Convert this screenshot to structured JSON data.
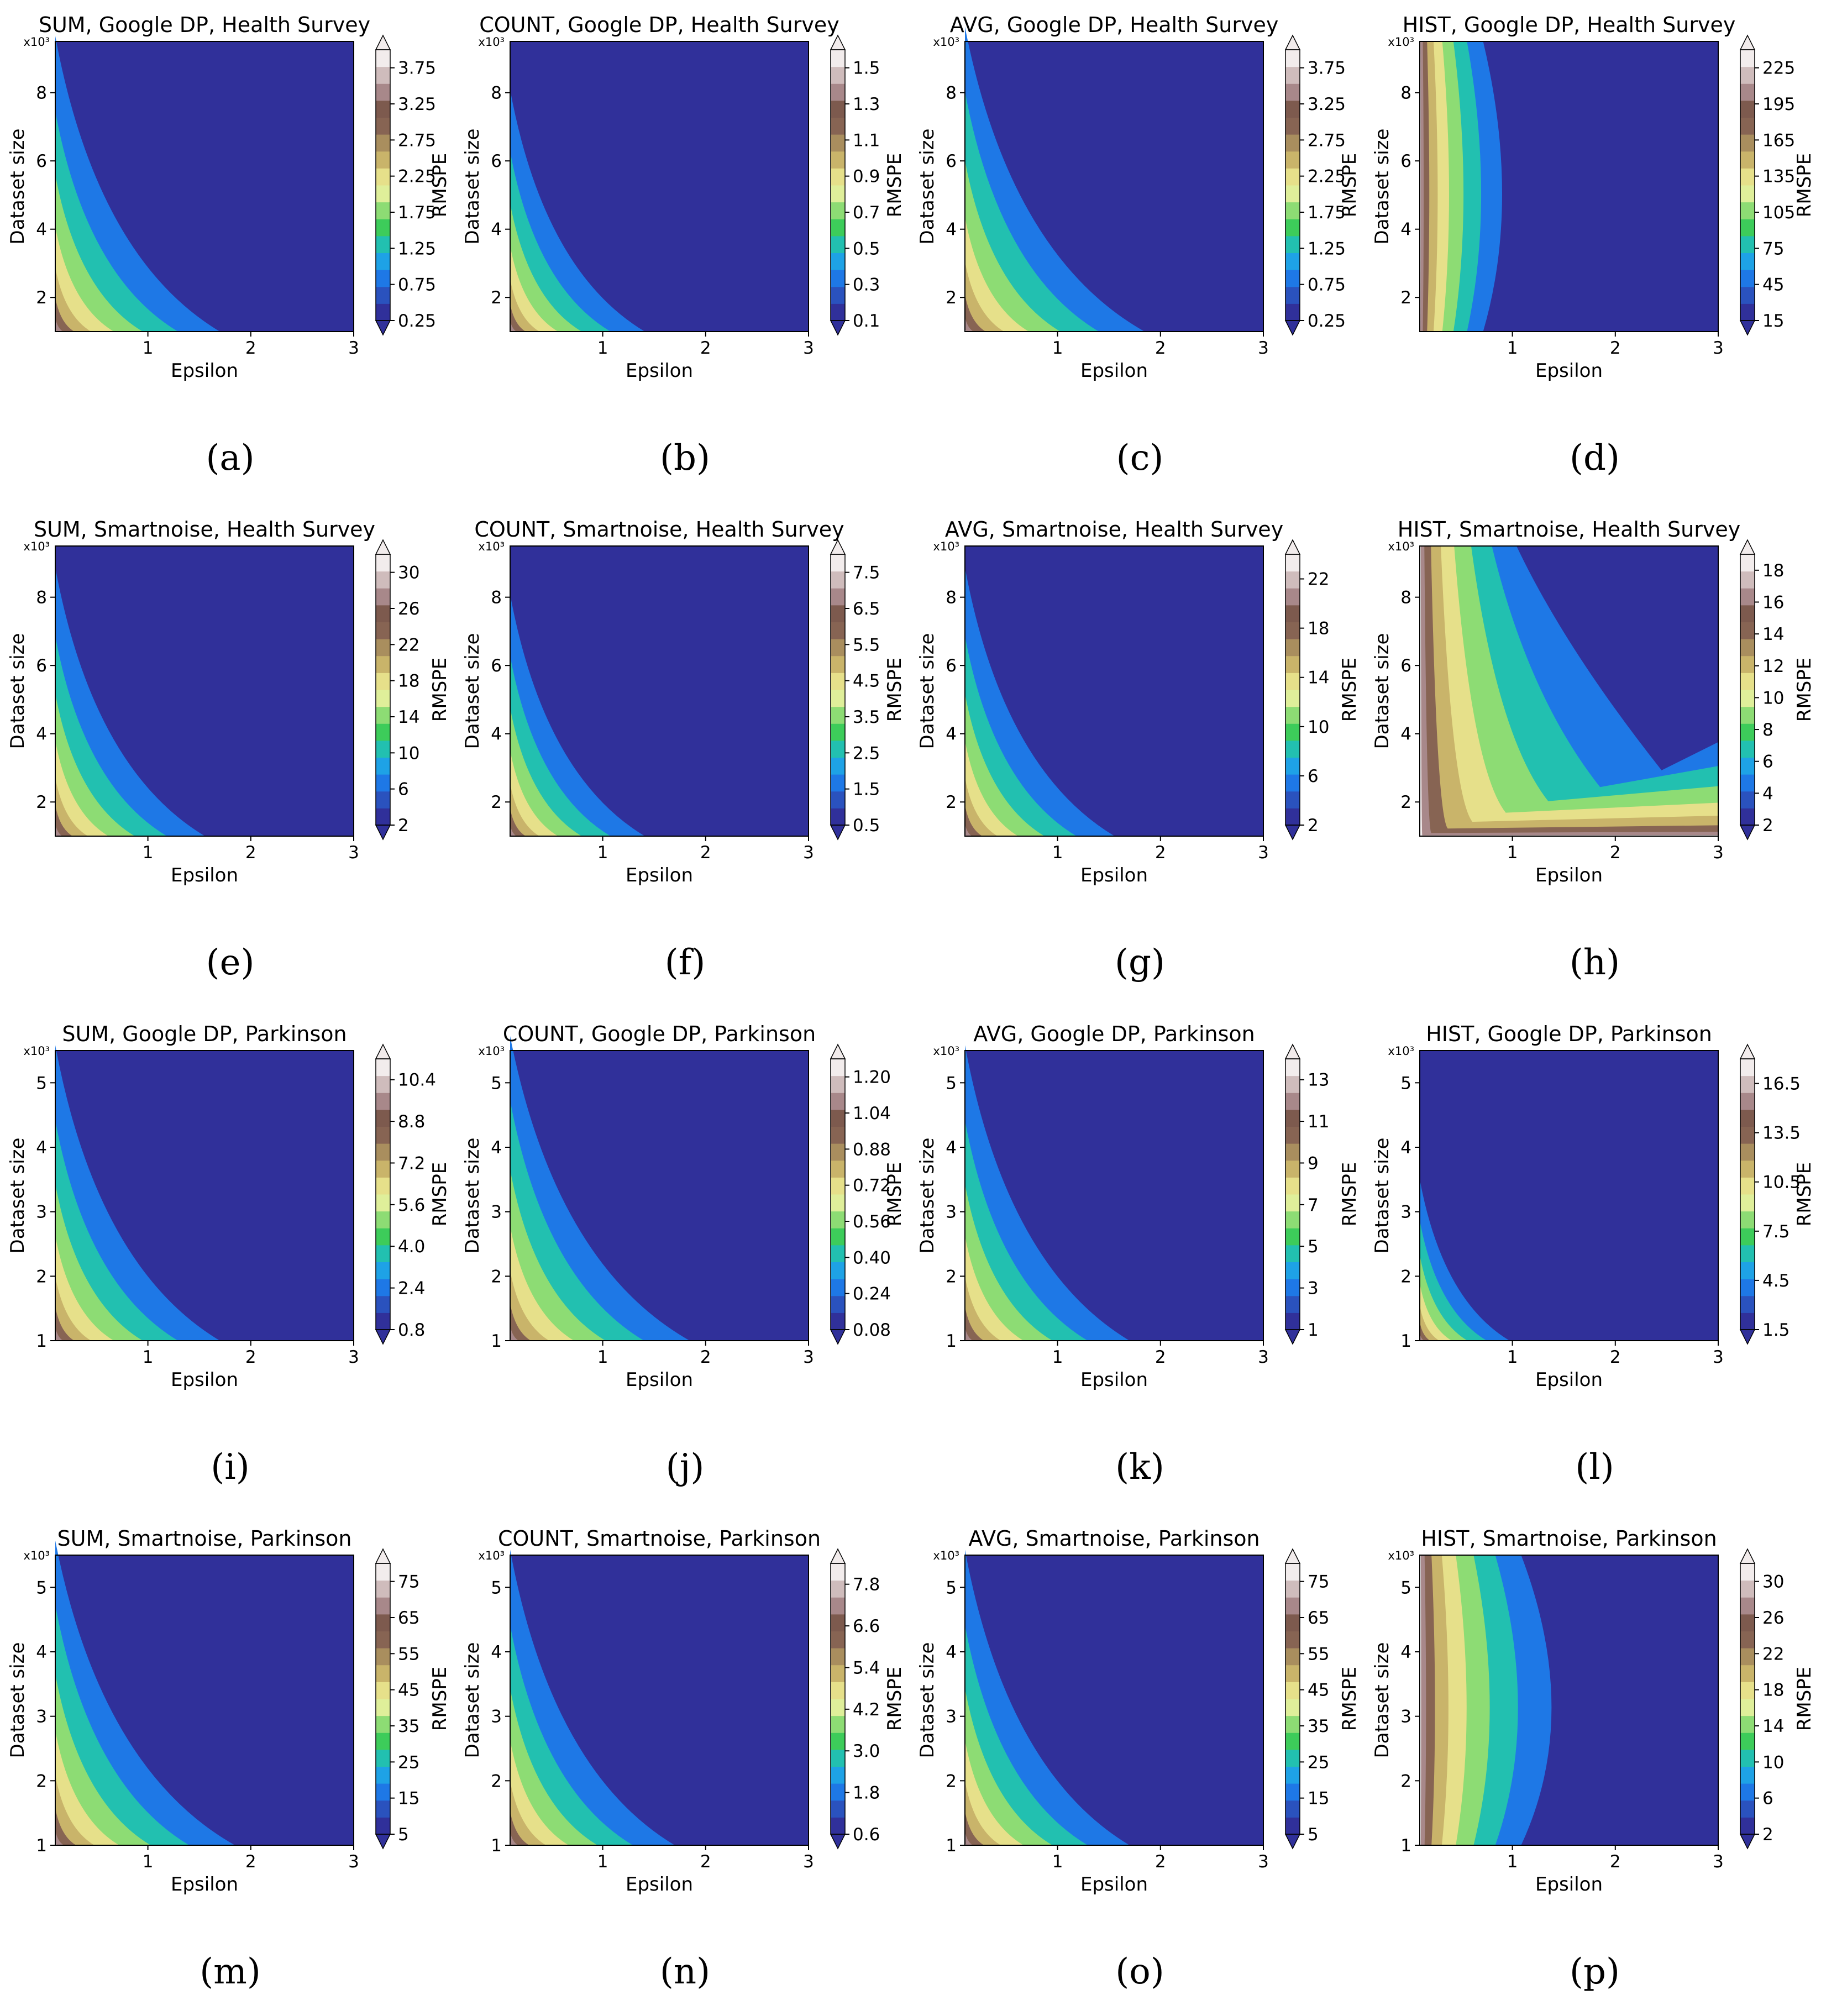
{
  "figure": {
    "axis_exponent_label": "x10³",
    "xlabel": "Epsilon",
    "ylabel": "Dataset size",
    "colorbar_label": "RMSPE",
    "palette": [
      "#30309a",
      "#2a52be",
      "#1e78e6",
      "#1ea2e6",
      "#22c0b0",
      "#3dcc5a",
      "#8ddc74",
      "#dfef9a",
      "#e6e08a",
      "#c9b46a",
      "#a98e5e",
      "#876453",
      "#7d5a4e",
      "#a8888a",
      "#cfbcbc",
      "#f2ecec"
    ]
  },
  "panels": [
    {
      "id": "a",
      "label": "(a)",
      "title": "SUM, Google DP, Health Survey",
      "chart_data": {
        "type": "contourf",
        "xlabel": "Epsilon",
        "ylabel": "Dataset size",
        "x_ticks": [
          "1",
          "2",
          "3"
        ],
        "y_ticks": [
          "2",
          "4",
          "6",
          "8"
        ],
        "xlim": [
          0.1,
          3
        ],
        "ylim": [
          1,
          9.5
        ],
        "colorbar_label": "RMSPE",
        "colorbar_ticks": [
          "0.25",
          "0.75",
          "1.25",
          "1.75",
          "2.25",
          "2.75",
          "3.25",
          "3.75"
        ],
        "colorbar_range": [
          0.25,
          4
        ],
        "pattern": "corner",
        "reach": 0.55
      }
    },
    {
      "id": "b",
      "label": "(b)",
      "title": "COUNT, Google DP, Health Survey",
      "chart_data": {
        "type": "contourf",
        "xlabel": "Epsilon",
        "ylabel": "Dataset size",
        "x_ticks": [
          "1",
          "2",
          "3"
        ],
        "y_ticks": [
          "2",
          "4",
          "6",
          "8"
        ],
        "xlim": [
          0.1,
          3
        ],
        "ylim": [
          1,
          9.5
        ],
        "colorbar_label": "RMSPE",
        "colorbar_ticks": [
          "0.1",
          "0.3",
          "0.5",
          "0.7",
          "0.9",
          "1.1",
          "1.3",
          "1.5"
        ],
        "colorbar_range": [
          0.1,
          1.6
        ],
        "pattern": "corner",
        "reach": 0.45
      }
    },
    {
      "id": "c",
      "label": "(c)",
      "title": "AVG, Google DP, Health Survey",
      "chart_data": {
        "type": "contourf",
        "xlabel": "Epsilon",
        "ylabel": "Dataset size",
        "x_ticks": [
          "1",
          "2",
          "3"
        ],
        "y_ticks": [
          "2",
          "4",
          "6",
          "8"
        ],
        "xlim": [
          0.1,
          3
        ],
        "ylim": [
          1,
          9.5
        ],
        "colorbar_label": "RMSPE",
        "colorbar_ticks": [
          "0.25",
          "0.75",
          "1.25",
          "1.75",
          "2.25",
          "2.75",
          "3.25",
          "3.75"
        ],
        "colorbar_range": [
          0.25,
          4
        ],
        "pattern": "corner",
        "reach": 0.6
      }
    },
    {
      "id": "d",
      "label": "(d)",
      "title": "HIST, Google DP, Health Survey",
      "chart_data": {
        "type": "contourf",
        "xlabel": "Epsilon",
        "ylabel": "Dataset size",
        "x_ticks": [
          "1",
          "2",
          "3"
        ],
        "y_ticks": [
          "2",
          "4",
          "6",
          "8"
        ],
        "xlim": [
          0.1,
          3
        ],
        "ylim": [
          1,
          9.5
        ],
        "colorbar_label": "RMSPE",
        "colorbar_ticks": [
          "15",
          "45",
          "75",
          "105",
          "135",
          "165",
          "195",
          "225"
        ],
        "colorbar_range": [
          15,
          240
        ],
        "pattern": "band",
        "reach": 0.25
      }
    },
    {
      "id": "e",
      "label": "(e)",
      "title": "SUM, Smartnoise, Health Survey",
      "chart_data": {
        "type": "contourf",
        "xlabel": "Epsilon",
        "ylabel": "Dataset size",
        "x_ticks": [
          "1",
          "2",
          "3"
        ],
        "y_ticks": [
          "2",
          "4",
          "6",
          "8"
        ],
        "xlim": [
          0.1,
          3
        ],
        "ylim": [
          1,
          9.5
        ],
        "colorbar_label": "RMSPE",
        "colorbar_ticks": [
          "2",
          "6",
          "10",
          "14",
          "18",
          "22",
          "26",
          "30"
        ],
        "colorbar_range": [
          2,
          32
        ],
        "pattern": "corner",
        "reach": 0.5
      }
    },
    {
      "id": "f",
      "label": "(f)",
      "title": "COUNT, Smartnoise, Health Survey",
      "chart_data": {
        "type": "contourf",
        "xlabel": "Epsilon",
        "ylabel": "Dataset size",
        "x_ticks": [
          "1",
          "2",
          "3"
        ],
        "y_ticks": [
          "2",
          "4",
          "6",
          "8"
        ],
        "xlim": [
          0.1,
          3
        ],
        "ylim": [
          1,
          9.5
        ],
        "colorbar_label": "RMSPE",
        "colorbar_ticks": [
          "0.5",
          "1.5",
          "2.5",
          "3.5",
          "4.5",
          "5.5",
          "6.5",
          "7.5"
        ],
        "colorbar_range": [
          0.5,
          8
        ],
        "pattern": "corner",
        "reach": 0.45
      }
    },
    {
      "id": "g",
      "label": "(g)",
      "title": "AVG, Smartnoise, Health Survey",
      "chart_data": {
        "type": "contourf",
        "xlabel": "Epsilon",
        "ylabel": "Dataset size",
        "x_ticks": [
          "1",
          "2",
          "3"
        ],
        "y_ticks": [
          "2",
          "4",
          "6",
          "8"
        ],
        "xlim": [
          0.1,
          3
        ],
        "ylim": [
          1,
          9.5
        ],
        "colorbar_label": "RMSPE",
        "colorbar_ticks": [
          "2",
          "6",
          "10",
          "14",
          "18",
          "22"
        ],
        "colorbar_range": [
          2,
          24
        ],
        "pattern": "corner",
        "reach": 0.5
      }
    },
    {
      "id": "h",
      "label": "(h)",
      "title": "HIST, Smartnoise, Health Survey",
      "chart_data": {
        "type": "contourf",
        "xlabel": "Epsilon",
        "ylabel": "Dataset size",
        "x_ticks": [
          "1",
          "2",
          "3"
        ],
        "y_ticks": [
          "2",
          "4",
          "6",
          "8"
        ],
        "xlim": [
          0.1,
          3
        ],
        "ylim": [
          1,
          9.5
        ],
        "colorbar_label": "RMSPE",
        "colorbar_ticks": [
          "2",
          "4",
          "6",
          "8",
          "10",
          "12",
          "14",
          "16",
          "18"
        ],
        "colorbar_range": [
          2,
          19
        ],
        "pattern": "noisy",
        "reach": 0.7
      }
    },
    {
      "id": "i",
      "label": "(i)",
      "title": "SUM, Google DP, Parkinson",
      "chart_data": {
        "type": "contourf",
        "xlabel": "Epsilon",
        "ylabel": "Dataset size",
        "x_ticks": [
          "1",
          "2",
          "3"
        ],
        "y_ticks": [
          "1",
          "2",
          "3",
          "4",
          "5"
        ],
        "xlim": [
          0.1,
          3
        ],
        "ylim": [
          1,
          5.5
        ],
        "colorbar_label": "RMSPE",
        "colorbar_ticks": [
          "0.8",
          "2.4",
          "4.0",
          "5.6",
          "7.2",
          "8.8",
          "10.4"
        ],
        "colorbar_range": [
          0.8,
          11.2
        ],
        "pattern": "corner",
        "reach": 0.55
      }
    },
    {
      "id": "j",
      "label": "(j)",
      "title": "COUNT, Google DP, Parkinson",
      "chart_data": {
        "type": "contourf",
        "xlabel": "Epsilon",
        "ylabel": "Dataset size",
        "x_ticks": [
          "1",
          "2",
          "3"
        ],
        "y_ticks": [
          "1",
          "2",
          "3",
          "4",
          "5"
        ],
        "xlim": [
          0.1,
          3
        ],
        "ylim": [
          1,
          5.5
        ],
        "colorbar_label": "RMSPE",
        "colorbar_ticks": [
          "0.08",
          "0.24",
          "0.40",
          "0.56",
          "0.72",
          "0.88",
          "1.04",
          "1.20"
        ],
        "colorbar_range": [
          0.08,
          1.28
        ],
        "pattern": "corner",
        "reach": 0.6
      }
    },
    {
      "id": "k",
      "label": "(k)",
      "title": "AVG, Google DP, Parkinson",
      "chart_data": {
        "type": "contourf",
        "xlabel": "Epsilon",
        "ylabel": "Dataset size",
        "x_ticks": [
          "1",
          "2",
          "3"
        ],
        "y_ticks": [
          "1",
          "2",
          "3",
          "4",
          "5"
        ],
        "xlim": [
          0.1,
          3
        ],
        "ylim": [
          1,
          5.5
        ],
        "colorbar_label": "RMSPE",
        "colorbar_ticks": [
          "1",
          "3",
          "5",
          "7",
          "9",
          "11",
          "13"
        ],
        "colorbar_range": [
          1,
          14
        ],
        "pattern": "corner",
        "reach": 0.55
      }
    },
    {
      "id": "l",
      "label": "(l)",
      "title": "HIST, Google DP, Parkinson",
      "chart_data": {
        "type": "contourf",
        "xlabel": "Epsilon",
        "ylabel": "Dataset size",
        "x_ticks": [
          "1",
          "2",
          "3"
        ],
        "y_ticks": [
          "1",
          "2",
          "3",
          "4",
          "5"
        ],
        "xlim": [
          0.1,
          3
        ],
        "ylim": [
          1,
          5.5
        ],
        "colorbar_label": "RMSPE",
        "colorbar_ticks": [
          "1.5",
          "4.5",
          "7.5",
          "10.5",
          "13.5",
          "16.5"
        ],
        "colorbar_range": [
          1.5,
          18
        ],
        "pattern": "spot",
        "reach": 0.3
      }
    },
    {
      "id": "m",
      "label": "(m)",
      "title": "SUM, Smartnoise, Parkinson",
      "chart_data": {
        "type": "contourf",
        "xlabel": "Epsilon",
        "ylabel": "Dataset size",
        "x_ticks": [
          "1",
          "2",
          "3"
        ],
        "y_ticks": [
          "1",
          "2",
          "3",
          "4",
          "5"
        ],
        "xlim": [
          0.1,
          3
        ],
        "ylim": [
          1,
          5.5
        ],
        "colorbar_label": "RMSPE",
        "colorbar_ticks": [
          "5",
          "15",
          "25",
          "35",
          "45",
          "55",
          "65",
          "75"
        ],
        "colorbar_range": [
          5,
          80
        ],
        "pattern": "corner",
        "reach": 0.6
      }
    },
    {
      "id": "n",
      "label": "(n)",
      "title": "COUNT, Smartnoise, Parkinson",
      "chart_data": {
        "type": "contourf",
        "xlabel": "Epsilon",
        "ylabel": "Dataset size",
        "x_ticks": [
          "1",
          "2",
          "3"
        ],
        "y_ticks": [
          "1",
          "2",
          "3",
          "4",
          "5"
        ],
        "xlim": [
          0.1,
          3
        ],
        "ylim": [
          1,
          5.5
        ],
        "colorbar_label": "RMSPE",
        "colorbar_ticks": [
          "0.6",
          "1.8",
          "3.0",
          "4.2",
          "5.4",
          "6.6",
          "7.8"
        ],
        "colorbar_range": [
          0.6,
          8.4
        ],
        "pattern": "corner",
        "reach": 0.55
      }
    },
    {
      "id": "o",
      "label": "(o)",
      "title": "AVG, Smartnoise, Parkinson",
      "chart_data": {
        "type": "contourf",
        "xlabel": "Epsilon",
        "ylabel": "Dataset size",
        "x_ticks": [
          "1",
          "2",
          "3"
        ],
        "y_ticks": [
          "1",
          "2",
          "3",
          "4",
          "5"
        ],
        "xlim": [
          0.1,
          3
        ],
        "ylim": [
          1,
          5.5
        ],
        "colorbar_label": "RMSPE",
        "colorbar_ticks": [
          "5",
          "15",
          "25",
          "35",
          "45",
          "55",
          "65",
          "75"
        ],
        "colorbar_range": [
          5,
          80
        ],
        "pattern": "corner",
        "reach": 0.55
      }
    },
    {
      "id": "p",
      "label": "(p)",
      "title": "HIST, Smartnoise, Parkinson",
      "chart_data": {
        "type": "contourf",
        "xlabel": "Epsilon",
        "ylabel": "Dataset size",
        "x_ticks": [
          "1",
          "2",
          "3"
        ],
        "y_ticks": [
          "1",
          "2",
          "3",
          "4",
          "5"
        ],
        "xlim": [
          0.1,
          3
        ],
        "ylim": [
          1,
          5.5
        ],
        "colorbar_label": "RMSPE",
        "colorbar_ticks": [
          "2",
          "6",
          "10",
          "14",
          "18",
          "22",
          "26",
          "30"
        ],
        "colorbar_range": [
          2,
          32
        ],
        "pattern": "band",
        "reach": 0.4
      }
    }
  ]
}
